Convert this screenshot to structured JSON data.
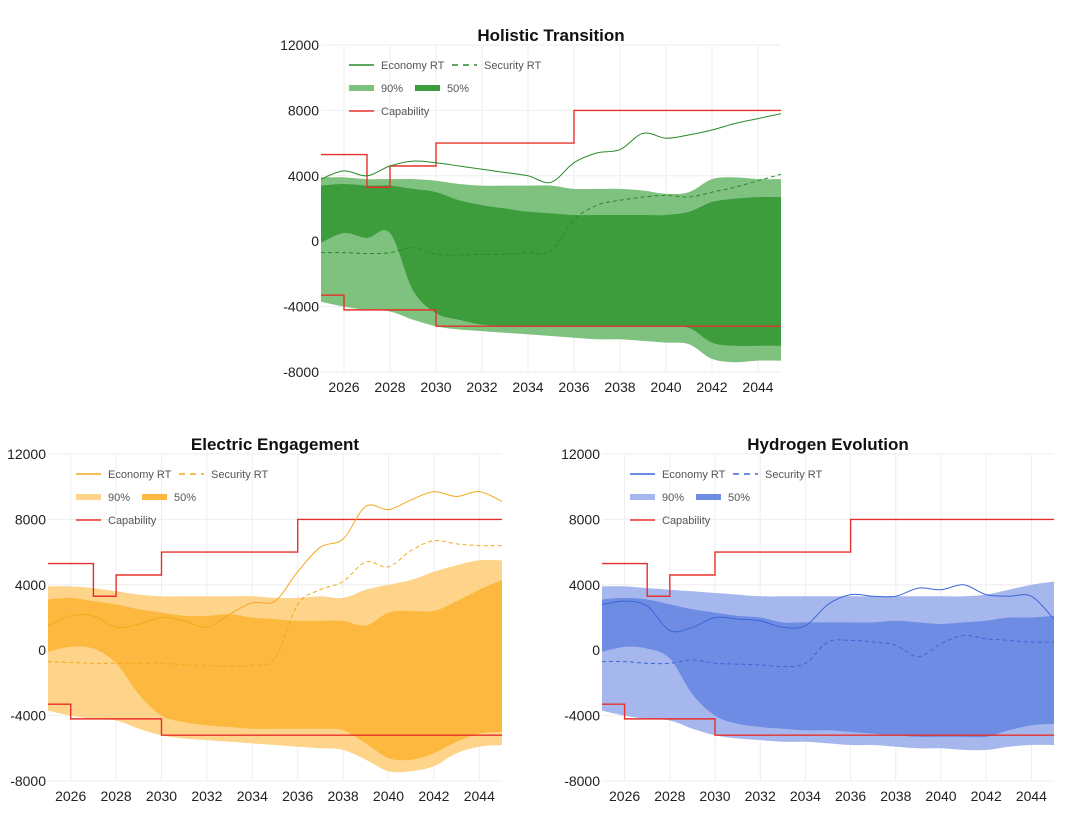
{
  "chart_data": [
    {
      "type": "area",
      "title": "Holistic Transition",
      "xlim": [
        2025,
        2045
      ],
      "ylim": [
        -8000,
        12000
      ],
      "x_ticks": [
        2026,
        2028,
        2030,
        2032,
        2034,
        2036,
        2038,
        2040,
        2042,
        2044
      ],
      "y_ticks": [
        -8000,
        -4000,
        0,
        4000,
        8000,
        12000
      ],
      "grid": true,
      "legend_position": "top-left",
      "colors": {
        "main": "#2a8a2a",
        "band90": "#7fc17f",
        "band50": "#3d9d3d",
        "capability": "#e8302a"
      },
      "legend": {
        "economy": "Economy RT",
        "security": "Security RT",
        "band90": "90%",
        "band50": "50%",
        "capability": "Capability"
      },
      "x": [
        2025,
        2026,
        2027,
        2028,
        2029,
        2030,
        2031,
        2032,
        2033,
        2034,
        2035,
        2036,
        2037,
        2038,
        2039,
        2040,
        2041,
        2042,
        2043,
        2044,
        2045
      ],
      "economy": [
        3800,
        4300,
        4000,
        4600,
        4900,
        4800,
        4600,
        4400,
        4200,
        4000,
        3600,
        4800,
        5400,
        5600,
        6600,
        6300,
        6500,
        6800,
        7200,
        7500,
        7800
      ],
      "security": [
        -700,
        -700,
        -750,
        -700,
        -400,
        -800,
        -850,
        -800,
        -800,
        -700,
        -600,
        1300,
        2200,
        2500,
        2700,
        2800,
        2700,
        3000,
        3300,
        3700,
        4100
      ],
      "band90_upper": [
        3900,
        3900,
        3800,
        3800,
        3800,
        3700,
        3500,
        3400,
        3400,
        3400,
        3400,
        3200,
        3200,
        3200,
        3100,
        2900,
        3000,
        3800,
        3900,
        3800,
        3800
      ],
      "band90_lower": [
        -3700,
        -4000,
        -4200,
        -4300,
        -4800,
        -5200,
        -5400,
        -5500,
        -5600,
        -5700,
        -5800,
        -5900,
        -6000,
        -6000,
        -6100,
        -6200,
        -6300,
        -7200,
        -7400,
        -7300,
        -7300
      ],
      "band50_upper": [
        3400,
        3500,
        3400,
        3400,
        3200,
        3000,
        2500,
        2200,
        2000,
        1800,
        1700,
        1600,
        1600,
        1600,
        1600,
        1600,
        1800,
        2400,
        2600,
        2700,
        2700
      ],
      "band50_lower": [
        -100,
        500,
        200,
        500,
        -3000,
        -4400,
        -4800,
        -5100,
        -5200,
        -5200,
        -5200,
        -5200,
        -5200,
        -5200,
        -5200,
        -5200,
        -5300,
        -6200,
        -6400,
        -6400,
        -6400
      ],
      "capability_upper": [
        [
          2025,
          5300
        ],
        [
          2027,
          3300
        ],
        [
          2028,
          4600
        ],
        [
          2030,
          6000
        ],
        [
          2036,
          8000
        ],
        [
          2045,
          8000
        ]
      ],
      "capability_lower": [
        [
          2025,
          -3300
        ],
        [
          2026,
          -4200
        ],
        [
          2030,
          -5200
        ],
        [
          2045,
          -5200
        ]
      ]
    },
    {
      "type": "area",
      "title": "Electric Engagement",
      "xlim": [
        2025,
        2045
      ],
      "ylim": [
        -8000,
        12000
      ],
      "x_ticks": [
        2026,
        2028,
        2030,
        2032,
        2034,
        2036,
        2038,
        2040,
        2042,
        2044
      ],
      "y_ticks": [
        -8000,
        -4000,
        0,
        4000,
        8000,
        12000
      ],
      "grid": true,
      "legend_position": "top-left",
      "colors": {
        "main": "#f5a81c",
        "band90": "#fdd48a",
        "band50": "#fdb83f",
        "capability": "#e8302a"
      },
      "legend": {
        "economy": "Economy RT",
        "security": "Security RT",
        "band90": "90%",
        "band50": "50%",
        "capability": "Capability"
      },
      "x": [
        2025,
        2026,
        2027,
        2028,
        2029,
        2030,
        2031,
        2032,
        2033,
        2034,
        2035,
        2036,
        2037,
        2038,
        2039,
        2040,
        2041,
        2042,
        2043,
        2044,
        2045
      ],
      "economy": [
        1500,
        2100,
        2100,
        1400,
        1600,
        2000,
        1800,
        1400,
        2200,
        2900,
        3000,
        4800,
        6300,
        6800,
        8800,
        8600,
        9200,
        9700,
        9400,
        9700,
        9100
      ],
      "security": [
        -700,
        -750,
        -800,
        -800,
        -800,
        -800,
        -900,
        -950,
        -1000,
        -900,
        -500,
        2800,
        3700,
        4200,
        5400,
        5100,
        6100,
        6700,
        6500,
        6400,
        6400
      ],
      "band90_upper": [
        3900,
        3900,
        3800,
        3600,
        3400,
        3300,
        3300,
        3300,
        3300,
        3300,
        3200,
        3200,
        3300,
        3200,
        3700,
        4000,
        4300,
        4800,
        5200,
        5500,
        5500
      ],
      "band90_lower": [
        -3700,
        -4000,
        -4200,
        -4300,
        -4800,
        -5200,
        -5400,
        -5500,
        -5600,
        -5700,
        -5800,
        -5900,
        -6000,
        -6100,
        -6700,
        -7400,
        -7400,
        -7100,
        -6300,
        -5900,
        -5800
      ],
      "band50_upper": [
        3100,
        3200,
        3000,
        2800,
        2500,
        2300,
        2100,
        2100,
        2200,
        2000,
        1900,
        1800,
        1800,
        1800,
        1500,
        2300,
        2400,
        2400,
        3000,
        3700,
        4300
      ],
      "band50_lower": [
        -100,
        200,
        100,
        -800,
        -2700,
        -4000,
        -4400,
        -4600,
        -4700,
        -4800,
        -4800,
        -4800,
        -4800,
        -4900,
        -5700,
        -6600,
        -6700,
        -6300,
        -5600,
        -5100,
        -5000
      ],
      "capability_upper": [
        [
          2025,
          5300
        ],
        [
          2027,
          3300
        ],
        [
          2028,
          4600
        ],
        [
          2030,
          6000
        ],
        [
          2036,
          8000
        ],
        [
          2045,
          8000
        ]
      ],
      "capability_lower": [
        [
          2025,
          -3300
        ],
        [
          2026,
          -4200
        ],
        [
          2030,
          -5200
        ],
        [
          2045,
          -5200
        ]
      ]
    },
    {
      "type": "area",
      "title": "Hydrogen Evolution",
      "xlim": [
        2025,
        2045
      ],
      "ylim": [
        -8000,
        12000
      ],
      "x_ticks": [
        2026,
        2028,
        2030,
        2032,
        2034,
        2036,
        2038,
        2040,
        2042,
        2044
      ],
      "y_ticks": [
        -8000,
        -4000,
        0,
        4000,
        8000,
        12000
      ],
      "grid": true,
      "legend_position": "top-left",
      "colors": {
        "main": "#3d66d9",
        "band90": "#a5b7ec",
        "band50": "#6e8ce3",
        "capability": "#e8302a"
      },
      "legend": {
        "economy": "Economy RT",
        "security": "Security RT",
        "band90": "90%",
        "band50": "50%",
        "capability": "Capability"
      },
      "x": [
        2025,
        2026,
        2027,
        2028,
        2029,
        2030,
        2031,
        2032,
        2033,
        2034,
        2035,
        2036,
        2037,
        2038,
        2039,
        2040,
        2041,
        2042,
        2043,
        2044,
        2045
      ],
      "economy": [
        2800,
        3000,
        2700,
        1200,
        1400,
        2000,
        1900,
        1800,
        1400,
        1500,
        2800,
        3400,
        3300,
        3300,
        3800,
        3700,
        4000,
        3400,
        3300,
        3300,
        1900
      ],
      "security": [
        -700,
        -700,
        -800,
        -800,
        -600,
        -800,
        -850,
        -900,
        -1000,
        -800,
        500,
        600,
        500,
        300,
        -400,
        400,
        900,
        700,
        600,
        500,
        500
      ],
      "band90_upper": [
        3900,
        3900,
        3800,
        3700,
        3600,
        3500,
        3400,
        3300,
        3300,
        3300,
        3300,
        3300,
        3300,
        3300,
        3300,
        3300,
        3300,
        3400,
        3700,
        4000,
        4200
      ],
      "band90_lower": [
        -3700,
        -4000,
        -4200,
        -4300,
        -4800,
        -5200,
        -5400,
        -5500,
        -5600,
        -5600,
        -5700,
        -5800,
        -5800,
        -5900,
        -6000,
        -6000,
        -6100,
        -6100,
        -5900,
        -5800,
        -5800
      ],
      "band50_upper": [
        3100,
        3200,
        3100,
        2800,
        2500,
        2300,
        2100,
        2000,
        1700,
        1700,
        1700,
        1700,
        1700,
        1800,
        1700,
        1600,
        1700,
        1800,
        2000,
        2000,
        2100
      ],
      "band50_lower": [
        -100,
        200,
        100,
        -500,
        -2700,
        -4000,
        -4500,
        -4700,
        -4800,
        -4900,
        -4900,
        -5000,
        -5100,
        -5200,
        -5300,
        -5300,
        -5300,
        -5300,
        -4900,
        -4600,
        -4500
      ],
      "capability_upper": [
        [
          2025,
          5300
        ],
        [
          2027,
          3300
        ],
        [
          2028,
          4600
        ],
        [
          2030,
          6000
        ],
        [
          2036,
          8000
        ],
        [
          2045,
          8000
        ]
      ],
      "capability_lower": [
        [
          2025,
          -3300
        ],
        [
          2026,
          -4200
        ],
        [
          2030,
          -5200
        ],
        [
          2045,
          -5200
        ]
      ]
    }
  ]
}
